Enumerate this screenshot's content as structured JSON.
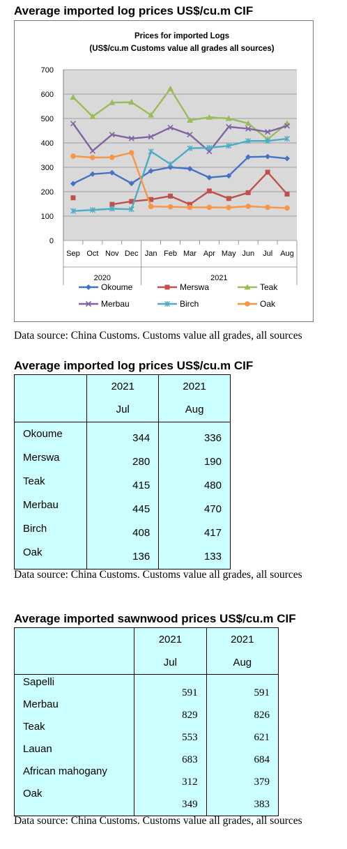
{
  "section1": {
    "heading": "Average imported log prices US$/cu.m CIF",
    "source": "Data source: China Customs. Customs value all grades, all sources"
  },
  "chart_data": {
    "type": "line",
    "title": "Prices for imported Logs",
    "subtitle": "(US$/cu.m Customs value all grades all sources)",
    "categories": [
      "Sep",
      "Oct",
      "Nov",
      "Dec",
      "Jan",
      "Feb",
      "Mar",
      "Apr",
      "May",
      "Jun",
      "Jul",
      "Aug"
    ],
    "year_groups": [
      {
        "label": "2020",
        "span": 4
      },
      {
        "label": "2021",
        "span": 8
      }
    ],
    "ylim": [
      0,
      700
    ],
    "yticks": [
      0,
      100,
      200,
      300,
      400,
      500,
      600,
      700
    ],
    "grid": true,
    "legend_position": "bottom",
    "series": [
      {
        "name": "Okoume",
        "color": "#4472c4",
        "marker": "diamond",
        "values": [
          233,
          272,
          278,
          234,
          285,
          300,
          294,
          258,
          265,
          342,
          344,
          336
        ]
      },
      {
        "name": "Merswa",
        "color": "#c0504d",
        "marker": "square",
        "values": [
          175,
          null,
          148,
          160,
          168,
          182,
          148,
          203,
          172,
          196,
          280,
          190
        ]
      },
      {
        "name": "Teak",
        "color": "#9bbb59",
        "marker": "triangle",
        "values": [
          587,
          508,
          565,
          567,
          514,
          622,
          493,
          505,
          500,
          480,
          415,
          480
        ]
      },
      {
        "name": "Merbau",
        "color": "#8064a2",
        "marker": "x",
        "values": [
          479,
          367,
          434,
          418,
          425,
          463,
          434,
          365,
          466,
          458,
          445,
          470
        ]
      },
      {
        "name": "Birch",
        "color": "#4bacc6",
        "marker": "star",
        "values": [
          121,
          125,
          130,
          128,
          365,
          313,
          378,
          380,
          388,
          408,
          408,
          417
        ]
      },
      {
        "name": "Oak",
        "color": "#f79646",
        "marker": "circle",
        "values": [
          346,
          340,
          341,
          360,
          139,
          138,
          136,
          136,
          135,
          140,
          136,
          133
        ]
      }
    ]
  },
  "table1": {
    "heading": "Average imported log prices US$/cu.m CIF",
    "col1_year": "2021",
    "col1_month": "Jul",
    "col2_year": "2021",
    "col2_month": "Aug",
    "rows": [
      {
        "name": "Okoume",
        "jul": "344",
        "aug": "336"
      },
      {
        "name": "Merswa",
        "jul": "280",
        "aug": "190"
      },
      {
        "name": "Teak",
        "jul": "415",
        "aug": "480"
      },
      {
        "name": "Merbau",
        "jul": "445",
        "aug": "470"
      },
      {
        "name": "Birch",
        "jul": "408",
        "aug": "417"
      },
      {
        "name": "Oak",
        "jul": "136",
        "aug": "133"
      }
    ],
    "source": "Data source: China Customs. Customs value all grades, all sources"
  },
  "table2": {
    "heading": "Average imported sawnwood prices US$/cu.m CIF",
    "col1_year": "2021",
    "col1_month": "Jul",
    "col2_year": "2021",
    "col2_month": "Aug",
    "rows": [
      {
        "name": "Sapelli",
        "jul": "591",
        "aug": "591"
      },
      {
        "name": "Merbau",
        "jul": "829",
        "aug": "826"
      },
      {
        "name": "Teak",
        "jul": "553",
        "aug": "621"
      },
      {
        "name": "Lauan",
        "jul": "683",
        "aug": "684"
      },
      {
        "name": "African mahogany",
        "jul": "312",
        "aug": "379"
      },
      {
        "name": "Oak",
        "jul": "349",
        "aug": "383"
      }
    ],
    "source": "Data source: China Customs. Customs value all grades, all sources"
  }
}
